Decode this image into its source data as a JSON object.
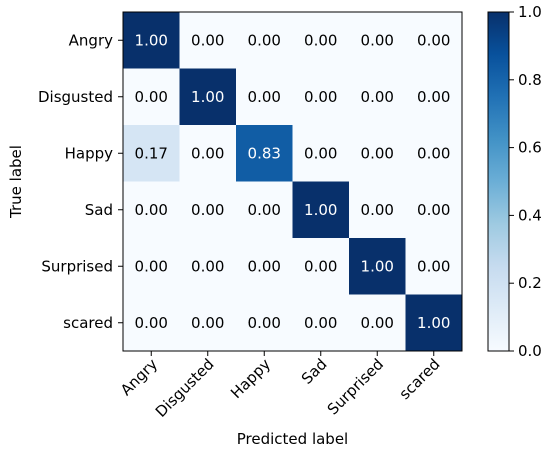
{
  "chart_data": {
    "type": "heatmap",
    "title": "",
    "xlabel": "Predicted label",
    "ylabel": "True label",
    "x_categories": [
      "Angry",
      "Disgusted",
      "Happy",
      "Sad",
      "Surprised",
      "scared"
    ],
    "y_categories": [
      "Angry",
      "Disgusted",
      "Happy",
      "Sad",
      "Surprised",
      "scared"
    ],
    "values": [
      [
        1.0,
        0.0,
        0.0,
        0.0,
        0.0,
        0.0
      ],
      [
        0.0,
        1.0,
        0.0,
        0.0,
        0.0,
        0.0
      ],
      [
        0.17,
        0.0,
        0.83,
        0.0,
        0.0,
        0.0
      ],
      [
        0.0,
        0.0,
        0.0,
        1.0,
        0.0,
        0.0
      ],
      [
        0.0,
        0.0,
        0.0,
        0.0,
        1.0,
        0.0
      ],
      [
        0.0,
        0.0,
        0.0,
        0.0,
        0.0,
        1.0
      ]
    ],
    "value_labels": [
      [
        "1.00",
        "0.00",
        "0.00",
        "0.00",
        "0.00",
        "0.00"
      ],
      [
        "0.00",
        "1.00",
        "0.00",
        "0.00",
        "0.00",
        "0.00"
      ],
      [
        "0.17",
        "0.00",
        "0.83",
        "0.00",
        "0.00",
        "0.00"
      ],
      [
        "0.00",
        "0.00",
        "0.00",
        "1.00",
        "0.00",
        "0.00"
      ],
      [
        "0.00",
        "0.00",
        "0.00",
        "0.00",
        "1.00",
        "0.00"
      ],
      [
        "0.00",
        "0.00",
        "0.00",
        "0.00",
        "0.00",
        "1.00"
      ]
    ],
    "colormap": "Blues",
    "vmin": 0.0,
    "vmax": 1.0,
    "colorbar": {
      "ticks": [
        0.0,
        0.2,
        0.4,
        0.6,
        0.8,
        1.0
      ],
      "tick_labels": [
        "0.0",
        "0.2",
        "0.4",
        "0.6",
        "0.8",
        "1.0"
      ]
    },
    "grid": false,
    "text_color_light": "#ffffff",
    "text_color_dark": "#000000"
  }
}
